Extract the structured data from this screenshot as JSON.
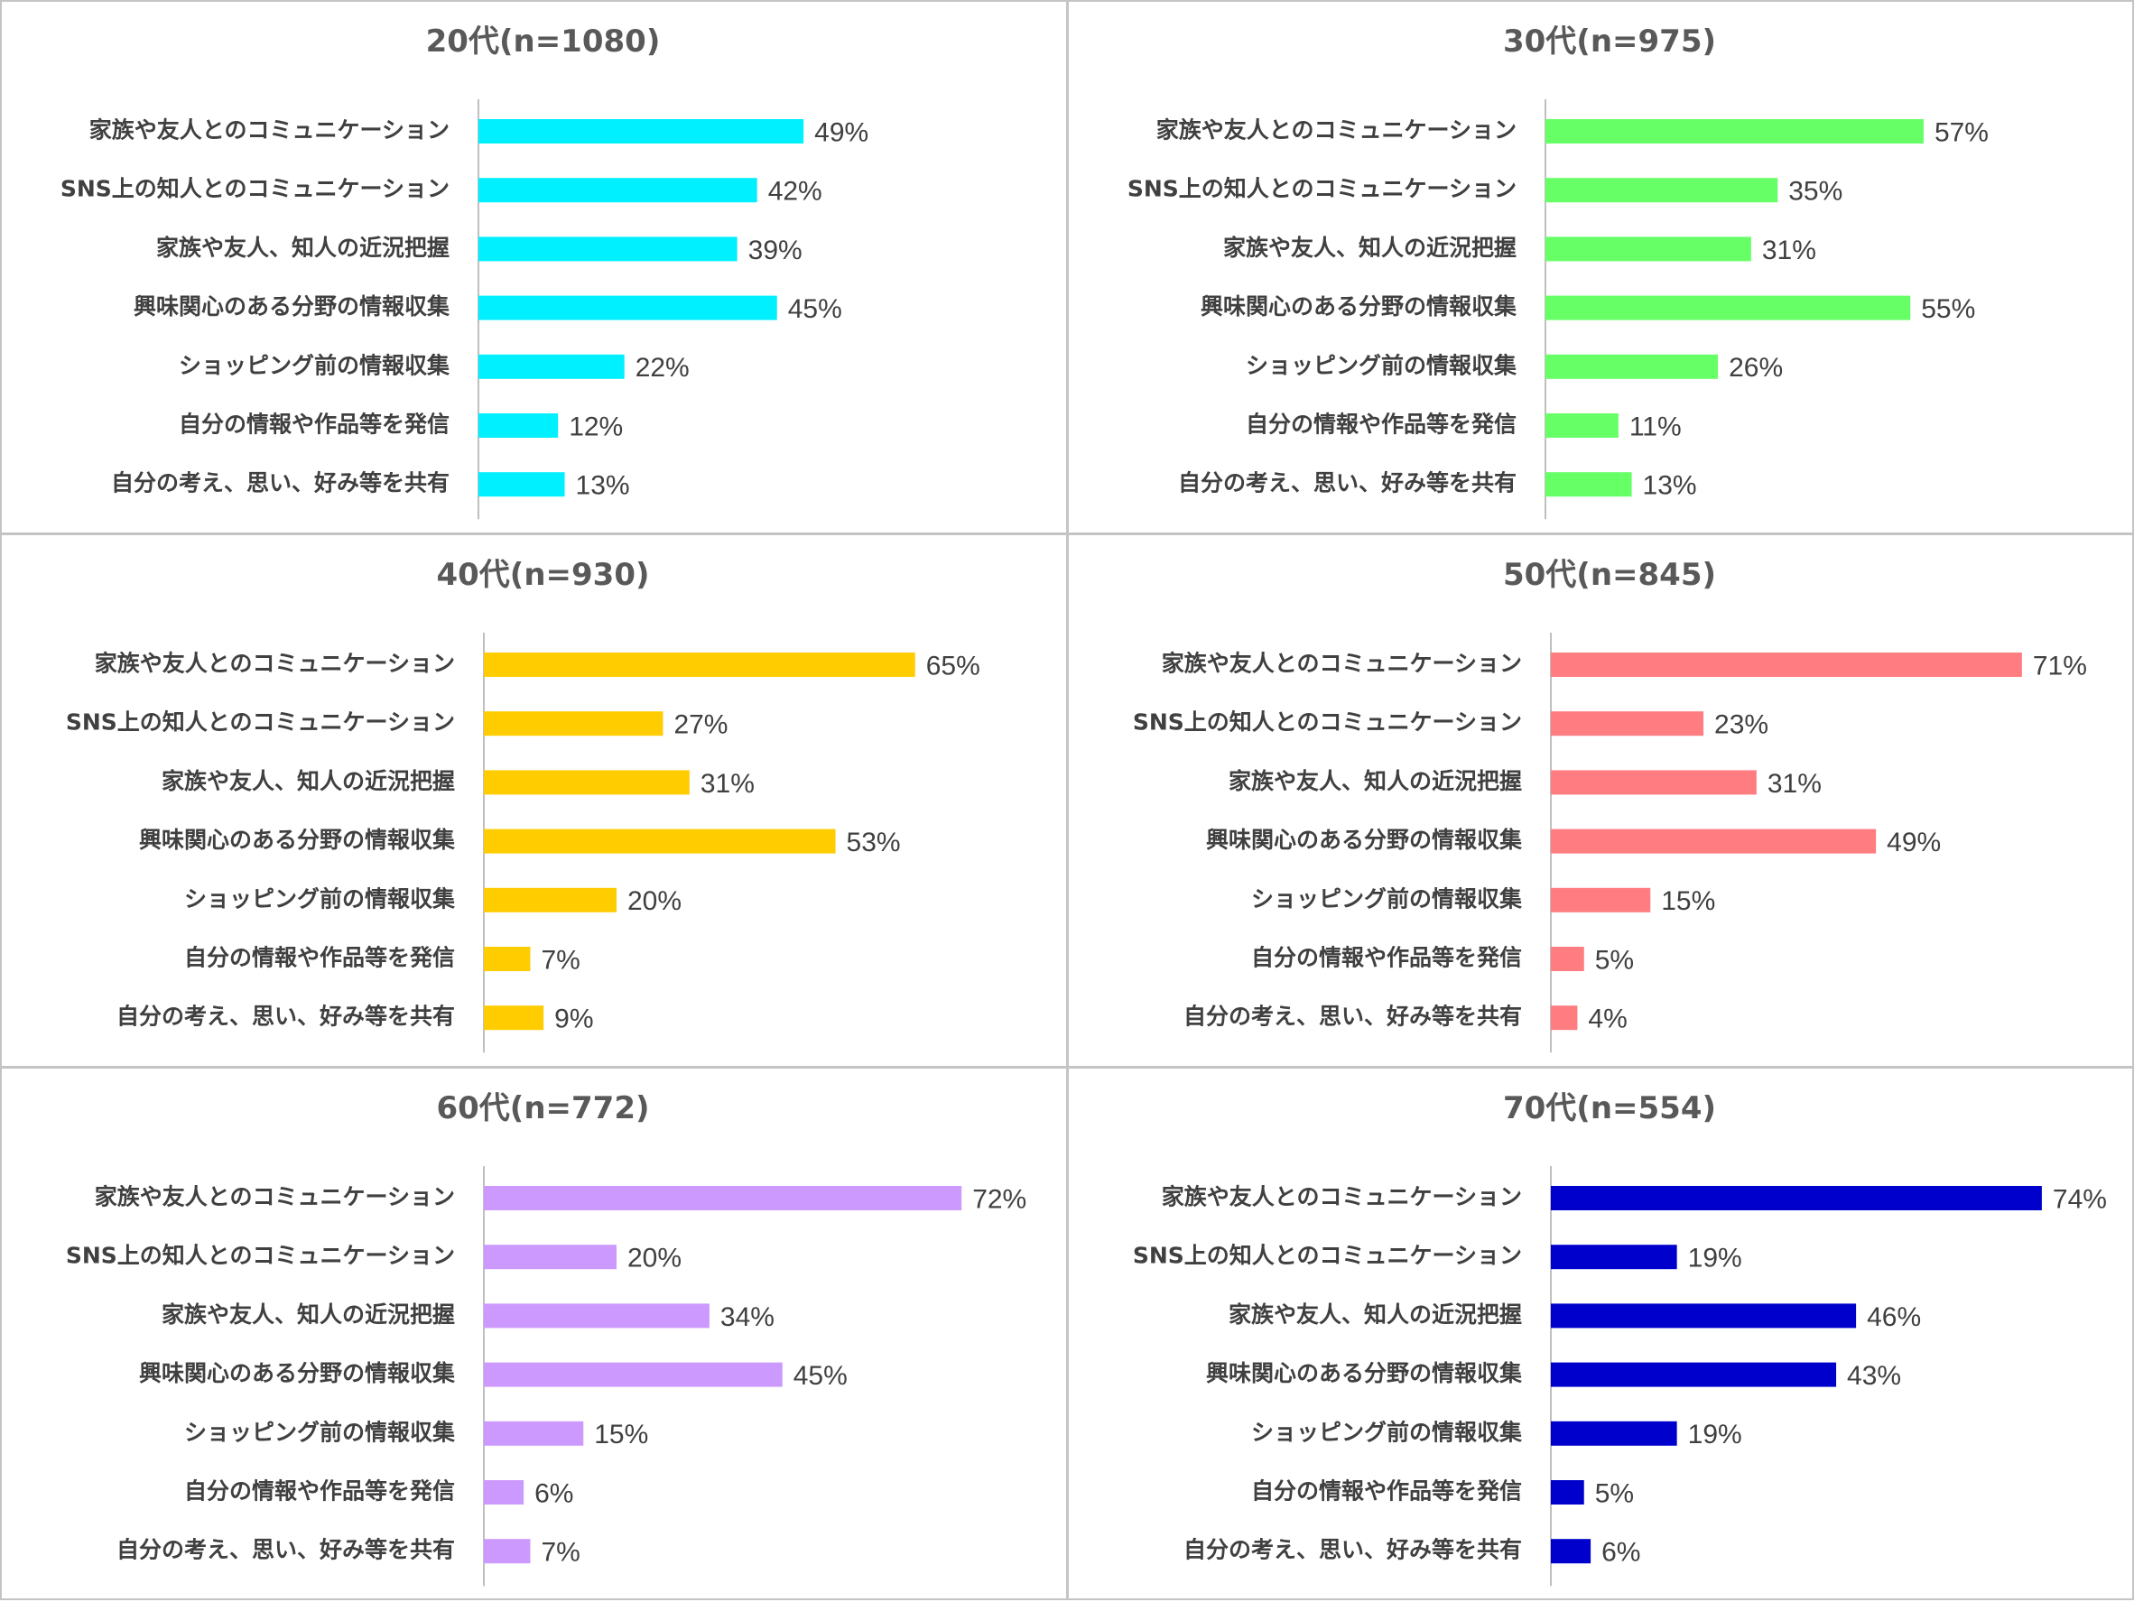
{
  "chart_data": [
    {
      "type": "bar",
      "orientation": "horizontal",
      "title": "20代(n=1080)",
      "categories": [
        "家族や友人とのコミュニケーション",
        "SNS上の知人とのコミュニケーション",
        "家族や友人、知人の近況把握",
        "興味関心のある分野の情報収集",
        "ショッピング前の情報収集",
        "自分の情報や作品等を発信",
        "自分の考え、思い、好み等を共有"
      ],
      "values": [
        49,
        42,
        39,
        45,
        22,
        12,
        13
      ],
      "value_labels": [
        "49%",
        "42%",
        "39%",
        "45%",
        "22%",
        "12%",
        "13%"
      ],
      "unit": "%",
      "color": "#00f0ff",
      "xlim": [
        0,
        80
      ]
    },
    {
      "type": "bar",
      "orientation": "horizontal",
      "title": "30代(n=975)",
      "categories": [
        "家族や友人とのコミュニケーション",
        "SNS上の知人とのコミュニケーション",
        "家族や友人、知人の近況把握",
        "興味関心のある分野の情報収集",
        "ショッピング前の情報収集",
        "自分の情報や作品等を発信",
        "自分の考え、思い、好み等を共有"
      ],
      "values": [
        57,
        35,
        31,
        55,
        26,
        11,
        13
      ],
      "value_labels": [
        "57%",
        "35%",
        "31%",
        "55%",
        "26%",
        "11%",
        "13%"
      ],
      "unit": "%",
      "color": "#66ff66",
      "xlim": [
        0,
        80
      ]
    },
    {
      "type": "bar",
      "orientation": "horizontal",
      "title": "40代(n=930)",
      "categories": [
        "家族や友人とのコミュニケーション",
        "SNS上の知人とのコミュニケーション",
        "家族や友人、知人の近況把握",
        "興味関心のある分野の情報収集",
        "ショッピング前の情報収集",
        "自分の情報や作品等を発信",
        "自分の考え、思い、好み等を共有"
      ],
      "values": [
        65,
        27,
        31,
        53,
        20,
        7,
        9
      ],
      "value_labels": [
        "65%",
        "27%",
        "31%",
        "53%",
        "20%",
        "7%",
        "9%"
      ],
      "unit": "%",
      "color": "#ffcc00",
      "xlim": [
        0,
        80
      ]
    },
    {
      "type": "bar",
      "orientation": "horizontal",
      "title": "50代(n=845)",
      "categories": [
        "家族や友人とのコミュニケーション",
        "SNS上の知人とのコミュニケーション",
        "家族や友人、知人の近況把握",
        "興味関心のある分野の情報収集",
        "ショッピング前の情報収集",
        "自分の情報や作品等を発信",
        "自分の考え、思い、好み等を共有"
      ],
      "values": [
        71,
        23,
        31,
        49,
        15,
        5,
        4
      ],
      "value_labels": [
        "71%",
        "23%",
        "31%",
        "49%",
        "15%",
        "5%",
        "4%"
      ],
      "unit": "%",
      "color": "#ff7c80",
      "xlim": [
        0,
        80
      ]
    },
    {
      "type": "bar",
      "orientation": "horizontal",
      "title": "60代(n=772)",
      "categories": [
        "家族や友人とのコミュニケーション",
        "SNS上の知人とのコミュニケーション",
        "家族や友人、知人の近況把握",
        "興味関心のある分野の情報収集",
        "ショッピング前の情報収集",
        "自分の情報や作品等を発信",
        "自分の考え、思い、好み等を共有"
      ],
      "values": [
        72,
        20,
        34,
        45,
        15,
        6,
        7
      ],
      "value_labels": [
        "72%",
        "20%",
        "34%",
        "45%",
        "15%",
        "6%",
        "7%"
      ],
      "unit": "%",
      "color": "#cc99ff",
      "xlim": [
        0,
        80
      ]
    },
    {
      "type": "bar",
      "orientation": "horizontal",
      "title": "70代(n=554)",
      "categories": [
        "家族や友人とのコミュニケーション",
        "SNS上の知人とのコミュニケーション",
        "家族や友人、知人の近況把握",
        "興味関心のある分野の情報収集",
        "ショッピング前の情報収集",
        "自分の情報や作品等を発信",
        "自分の考え、思い、好み等を共有"
      ],
      "values": [
        74,
        19,
        46,
        43,
        19,
        5,
        6
      ],
      "value_labels": [
        "74%",
        "19%",
        "46%",
        "43%",
        "19%",
        "5%",
        "6%"
      ],
      "unit": "%",
      "color": "#0000cc",
      "xlim": [
        0,
        80
      ]
    }
  ]
}
